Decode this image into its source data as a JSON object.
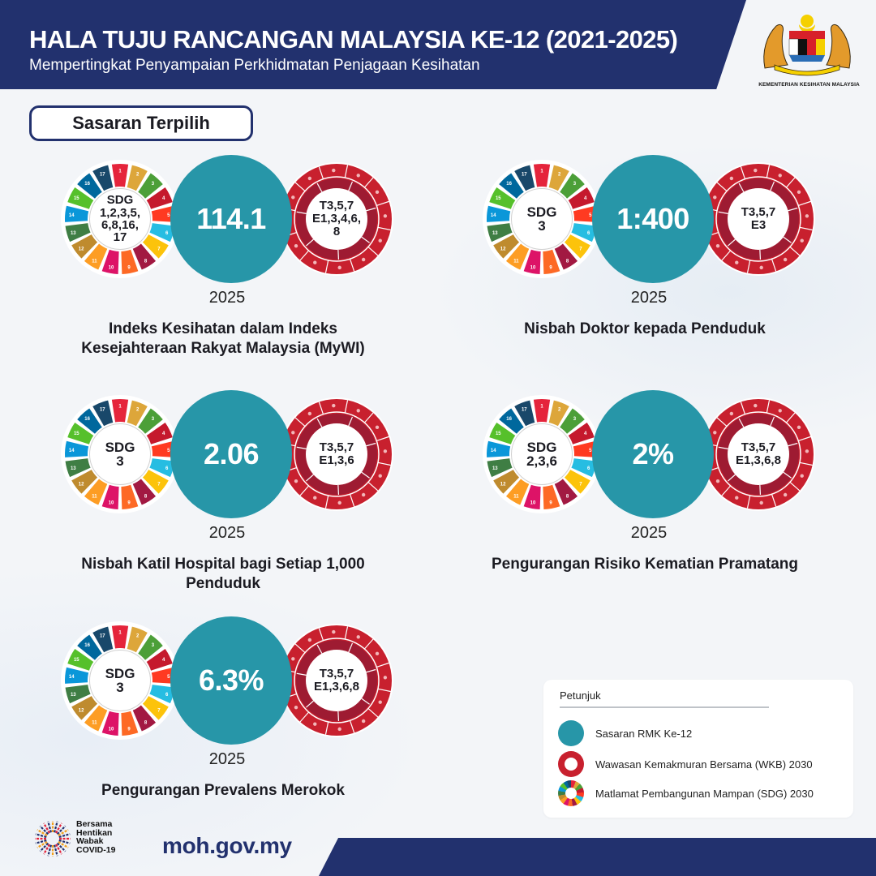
{
  "header": {
    "title": "HALA TUJU RANCANGAN MALAYSIA KE-12 (2021-2025)",
    "subtitle": "Mempertingkat Penyampaian Perkhidmatan Penjagaan Kesihatan",
    "ministry": "KEMENTERIAN KESIHATAN MALAYSIA",
    "brand_color": "#22316e"
  },
  "section": {
    "title": "Sasaran Terpilih"
  },
  "targets": [
    {
      "sdg": "SDG\n1,2,3,5,\n6,8,16,\n17",
      "value": "114.1",
      "wkb": "T3,5,7\nE1,3,4,6,\n8",
      "year": "2025",
      "label": "Indeks Kesihatan dalam Indeks Kesejahteraan Rakyat Malaysia (MyWI)"
    },
    {
      "sdg": "SDG\n3",
      "value": "1:400",
      "wkb": "T3,5,7\nE3",
      "year": "2025",
      "label": "Nisbah Doktor kepada Penduduk"
    },
    {
      "sdg": "SDG\n3",
      "value": "2.06",
      "wkb": "T3,5,7\nE1,3,6",
      "year": "2025",
      "label": "Nisbah Katil Hospital bagi Setiap 1,000 Penduduk"
    },
    {
      "sdg": "SDG\n2,3,6",
      "value": "2%",
      "wkb": "T3,5,7\nE1,3,6,8",
      "year": "2025",
      "label": "Pengurangan Risiko Kematian Pramatang"
    },
    {
      "sdg": "SDG\n3",
      "value": "6.3%",
      "wkb": "T3,5,7\nE1,3,6,8",
      "year": "2025",
      "label": "Pengurangan Prevalens Merokok"
    }
  ],
  "legend": {
    "title": "Petunjuk",
    "items": [
      {
        "label": "Sasaran RMK Ke-12",
        "icon": "teal-circle",
        "color": "#2796a8"
      },
      {
        "label": "Wawasan Kemakmuran Bersama (WKB) 2030",
        "icon": "wkb-wheel",
        "color": "#c8202e"
      },
      {
        "label": "Matlamat Pembangunan Mampan (SDG) 2030",
        "icon": "sdg-wheel"
      }
    ]
  },
  "footer": {
    "campaign": "Bersama\nHentikan\nWabak\nCOVID-19",
    "url": "moh.gov.my"
  },
  "colors": {
    "rmk": "#2796a8",
    "wkb": "#c8202e",
    "sdg_segments": [
      "#e5243b",
      "#dda63a",
      "#4c9f38",
      "#c5192d",
      "#ff3a21",
      "#26bde2",
      "#fcc30b",
      "#a21942",
      "#fd6925",
      "#dd1367",
      "#fd9d24",
      "#bf8b2e",
      "#3f7e44",
      "#0a97d9",
      "#56c02b",
      "#00689d",
      "#19486a"
    ]
  }
}
